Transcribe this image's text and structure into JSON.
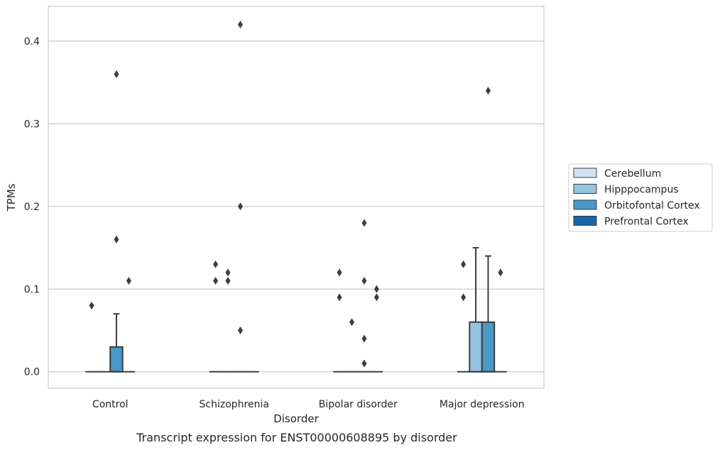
{
  "chart_data": {
    "type": "box",
    "categories": [
      "Control",
      "Schizophrenia",
      "Bipolar disorder",
      "Major depression"
    ],
    "xlabel": "Disorder",
    "ylabel": "TPMs",
    "caption": "Transcript expression for ENST00000608895 by disorder",
    "ylim": [
      -0.02,
      0.442
    ],
    "yticks": [
      0.0,
      0.1,
      0.2,
      0.3,
      0.4
    ],
    "ytick_labels": [
      "0.0",
      "0.1",
      "0.2",
      "0.3",
      "0.4"
    ],
    "grid": "horizontal",
    "legend_position": "right",
    "series": [
      {
        "name": "Cerebellum",
        "color": "#d0e1f2",
        "boxes": [
          {
            "q1": 0,
            "median": 0,
            "q3": 0,
            "whisker_low": 0,
            "whisker_high": 0,
            "outliers": [
              0.08
            ]
          },
          {
            "q1": 0,
            "median": 0,
            "q3": 0,
            "whisker_low": 0,
            "whisker_high": 0,
            "outliers": [
              0.13,
              0.11
            ]
          },
          {
            "q1": 0,
            "median": 0,
            "q3": 0,
            "whisker_low": 0,
            "whisker_high": 0,
            "outliers": [
              0.12,
              0.09
            ]
          },
          {
            "q1": 0,
            "median": 0,
            "q3": 0,
            "whisker_low": 0,
            "whisker_high": 0,
            "outliers": [
              0.13,
              0.09
            ]
          }
        ]
      },
      {
        "name": "Hipppocampus",
        "color": "#94c4df",
        "boxes": [
          {
            "q1": 0,
            "median": 0,
            "q3": 0,
            "whisker_low": 0,
            "whisker_high": 0,
            "outliers": []
          },
          {
            "q1": 0,
            "median": 0,
            "q3": 0,
            "whisker_low": 0,
            "whisker_high": 0,
            "outliers": [
              0.12,
              0.11
            ]
          },
          {
            "q1": 0,
            "median": 0,
            "q3": 0,
            "whisker_low": 0,
            "whisker_high": 0,
            "outliers": [
              0.06
            ]
          },
          {
            "q1": 0,
            "median": 0,
            "q3": 0.06,
            "whisker_low": 0,
            "whisker_high": 0.15,
            "outliers": []
          }
        ]
      },
      {
        "name": "Orbitofontal Cortex",
        "color": "#4a98c9",
        "boxes": [
          {
            "q1": 0,
            "median": 0,
            "q3": 0.03,
            "whisker_low": 0,
            "whisker_high": 0.07,
            "outliers": [
              0.36,
              0.16
            ]
          },
          {
            "q1": 0,
            "median": 0,
            "q3": 0,
            "whisker_low": 0,
            "whisker_high": 0,
            "outliers": [
              0.42,
              0.2,
              0.05
            ]
          },
          {
            "q1": 0,
            "median": 0,
            "q3": 0,
            "whisker_low": 0,
            "whisker_high": 0,
            "outliers": [
              0.18,
              0.11,
              0.04,
              0.01
            ]
          },
          {
            "q1": 0,
            "median": 0,
            "q3": 0.06,
            "whisker_low": 0,
            "whisker_high": 0.14,
            "outliers": [
              0.34
            ]
          }
        ]
      },
      {
        "name": "Prefrontal Cortex",
        "color": "#1764ab",
        "boxes": [
          {
            "q1": 0,
            "median": 0,
            "q3": 0,
            "whisker_low": 0,
            "whisker_high": 0,
            "outliers": [
              0.11
            ]
          },
          {
            "q1": 0,
            "median": 0,
            "q3": 0,
            "whisker_low": 0,
            "whisker_high": 0,
            "outliers": []
          },
          {
            "q1": 0,
            "median": 0,
            "q3": 0,
            "whisker_low": 0,
            "whisker_high": 0,
            "outliers": [
              0.1,
              0.09
            ]
          },
          {
            "q1": 0,
            "median": 0,
            "q3": 0,
            "whisker_low": 0,
            "whisker_high": 0,
            "outliers": [
              0.12
            ]
          }
        ]
      }
    ]
  }
}
